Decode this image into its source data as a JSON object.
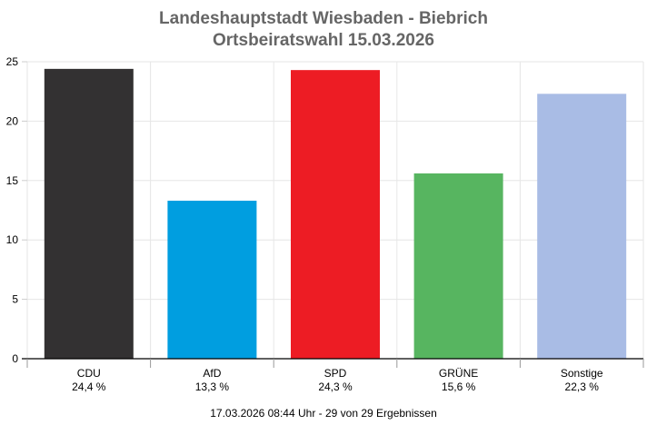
{
  "chart_data": {
    "type": "bar",
    "title": "Landeshauptstadt Wiesbaden - Biebrich",
    "subtitle": "Ortsbeiratswahl 15.03.2026",
    "categories": [
      "CDU",
      "AfD",
      "SPD",
      "GRÜNE",
      "Sonstige"
    ],
    "values": [
      24.4,
      13.3,
      24.3,
      15.6,
      22.3
    ],
    "value_labels": [
      "24,4 %",
      "13,3 %",
      "24,3 %",
      "15,6 %",
      "22,3 %"
    ],
    "colors": [
      "#333132",
      "#009ee0",
      "#ed1c24",
      "#57b560",
      "#a9bce5"
    ],
    "ylim": [
      0,
      25
    ],
    "yticks": [
      0,
      5,
      10,
      15,
      20,
      25
    ],
    "grid": true,
    "xlabel": "",
    "ylabel": ""
  },
  "footer": {
    "status": "17.03.2026 08:44 Uhr - 29 von 29 Ergebnissen"
  }
}
